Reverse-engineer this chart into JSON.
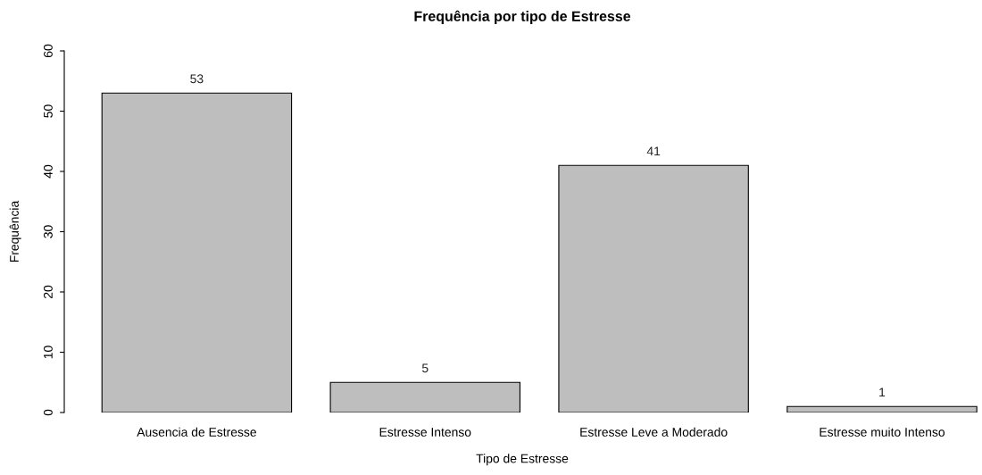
{
  "chart_data": {
    "type": "bar",
    "title": "Frequência por tipo de Estresse",
    "xlabel": "Tipo de Estresse",
    "ylabel": "Frequência",
    "categories": [
      "Ausencia de Estresse",
      "Estresse Intenso",
      "Estresse Leve a Moderado",
      "Estresse muito Intenso"
    ],
    "values": [
      53,
      5,
      41,
      1
    ],
    "color": "#bebebe",
    "ylim": [
      0,
      60
    ],
    "yticks": [
      0,
      10,
      20,
      30,
      40,
      50,
      60
    ],
    "data_labels": true,
    "grid": false,
    "legend": false
  }
}
